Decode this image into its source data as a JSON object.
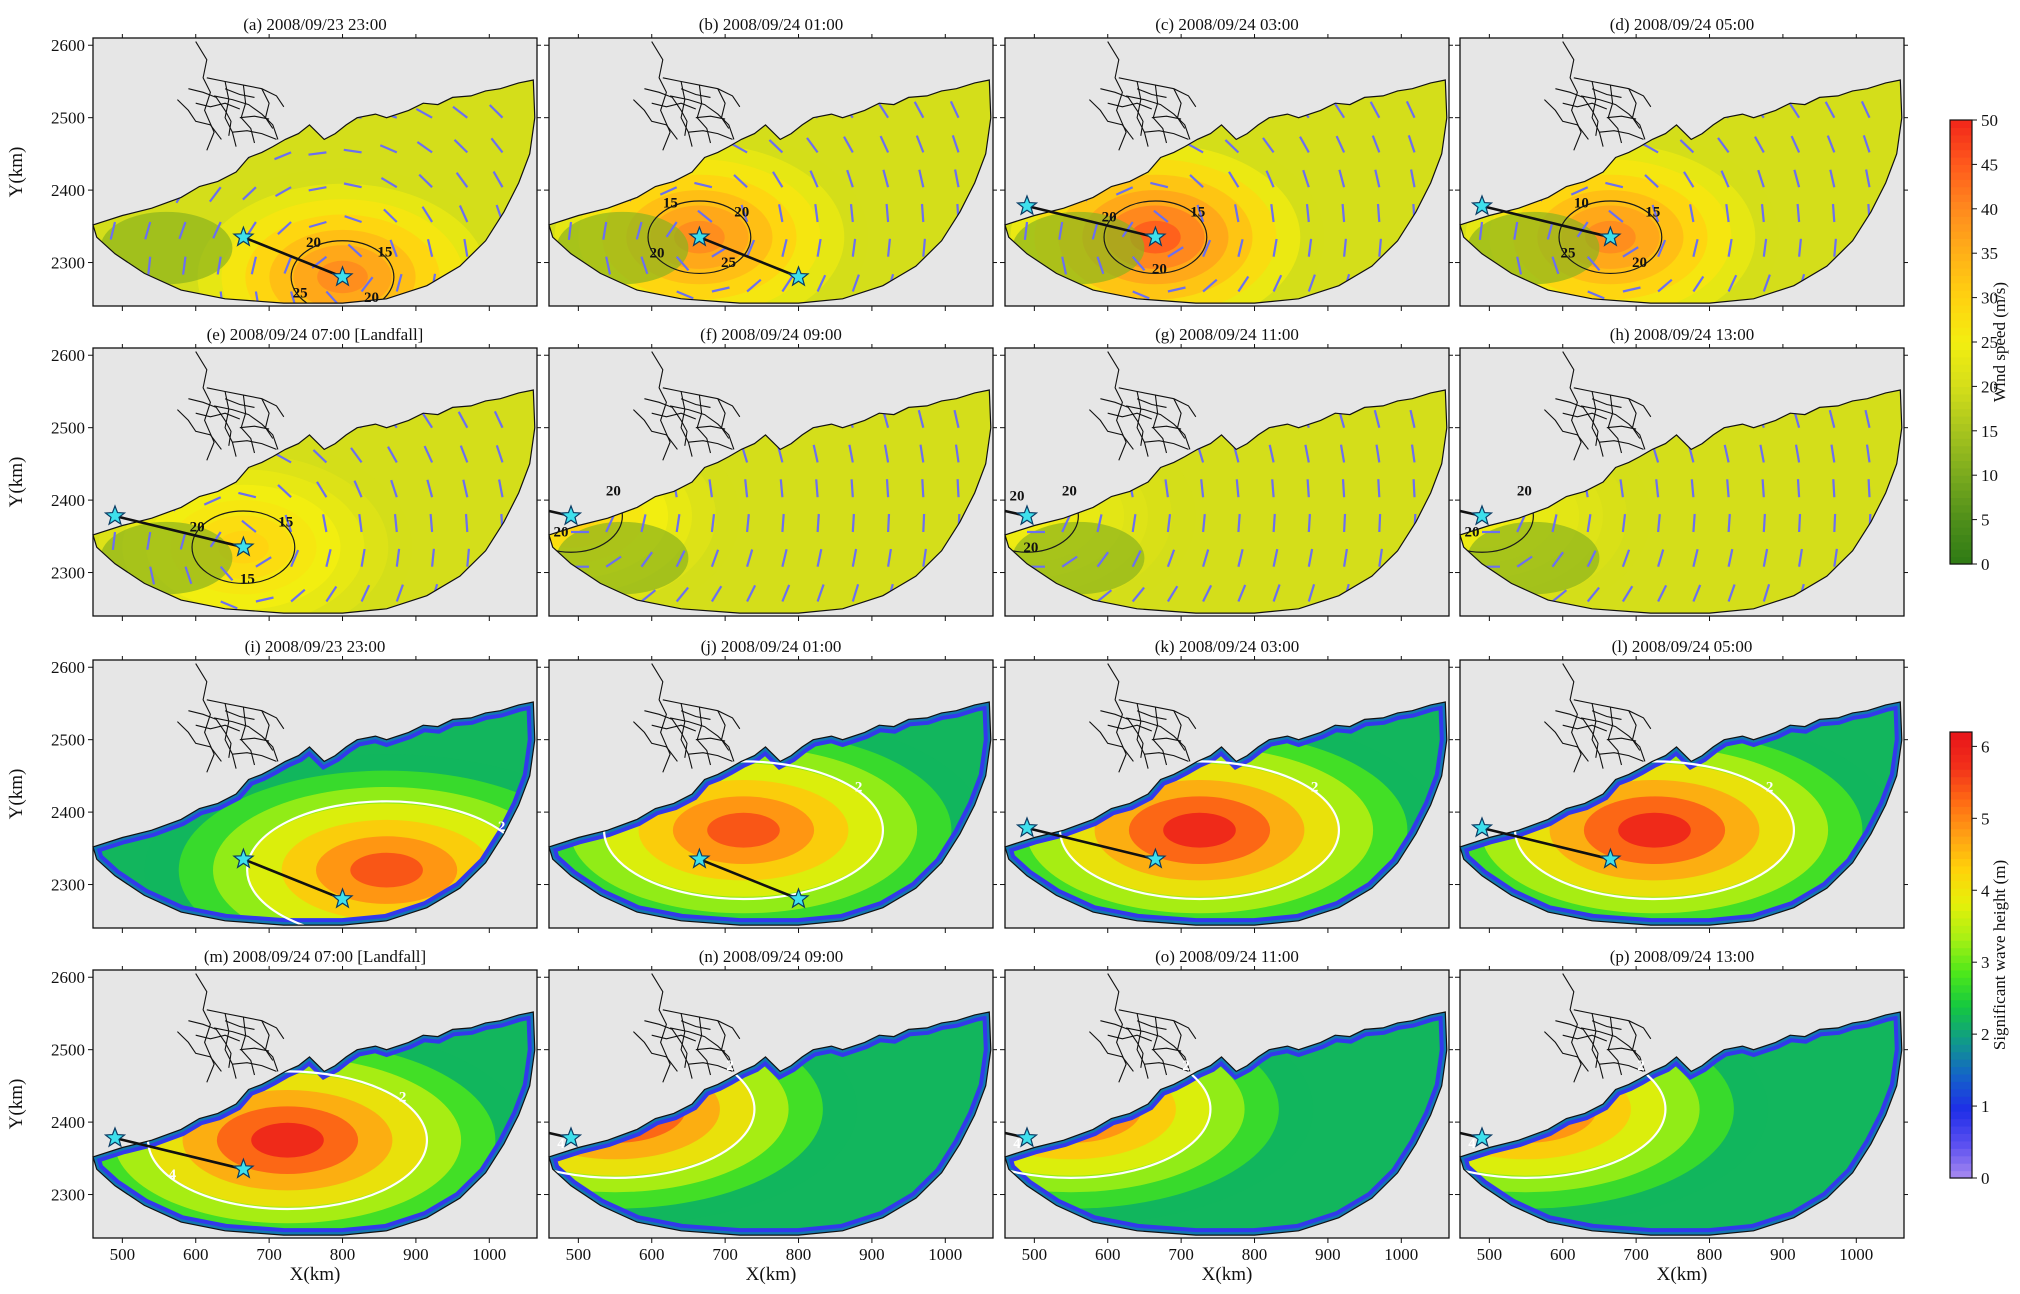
{
  "figure": {
    "x_axis_label": "X(km)",
    "y_axis_label": "Y(km)",
    "x_ticks": [
      500,
      600,
      700,
      800,
      900,
      1000
    ],
    "y_ticks": [
      2300,
      2400,
      2500,
      2600
    ],
    "x_range": [
      460,
      1065
    ],
    "y_range": [
      2240,
      2610
    ]
  },
  "chart_data": [
    {
      "type": "heatmap",
      "variable": "Wind speed",
      "colorbar": {
        "label": "Wind speed (m/s)",
        "range": [
          0,
          50
        ],
        "ticks": [
          0,
          5,
          10,
          15,
          20,
          25,
          30,
          35,
          40,
          45,
          50
        ],
        "colors": [
          "#2e7a14",
          "#4f8f1a",
          "#7aaa1e",
          "#a7c41e",
          "#d4de1a",
          "#f3ee10",
          "#ffd210",
          "#ffb018",
          "#ff8a1e",
          "#ff5a1c",
          "#f2261a"
        ]
      },
      "panels": [
        {
          "label": "(a) 2008/09/23 23:00",
          "storm_center": [
            800,
            2280
          ],
          "track": [
            [
              665,
              2335
            ],
            [
              800,
              2280
            ]
          ],
          "peak_speed": 40,
          "contour_labels": [
            "15",
            "20",
            "25",
            "20"
          ]
        },
        {
          "label": "(b) 2008/09/24 01:00",
          "storm_center": [
            665,
            2335
          ],
          "track": [
            [
              665,
              2335
            ],
            [
              800,
              2280
            ]
          ],
          "peak_speed": 40,
          "contour_labels": [
            "20",
            "15",
            "20",
            "25"
          ]
        },
        {
          "label": "(c) 2008/09/24 03:00",
          "storm_center": [
            665,
            2335
          ],
          "track": [
            [
              490,
              2378
            ],
            [
              665,
              2335
            ]
          ],
          "peak_speed": 45,
          "contour_labels": [
            "15",
            "20",
            "20"
          ]
        },
        {
          "label": "(d) 2008/09/24 05:00",
          "storm_center": [
            665,
            2335
          ],
          "track": [
            [
              490,
              2378
            ],
            [
              665,
              2335
            ]
          ],
          "peak_speed": 40,
          "contour_labels": [
            "15",
            "10",
            "25",
            "20"
          ]
        },
        {
          "label": "(e) 2008/09/24 07:00 [Landfall]",
          "storm_center": [
            665,
            2335
          ],
          "track": [
            [
              490,
              2378
            ],
            [
              665,
              2335
            ]
          ],
          "peak_speed": 30,
          "contour_labels": [
            "15",
            "20",
            "15"
          ]
        },
        {
          "label": "(f) 2008/09/24 09:00",
          "storm_center": [
            490,
            2378
          ],
          "track": [
            [
              460,
              2385
            ],
            [
              490,
              2378
            ]
          ],
          "peak_speed": 30,
          "contour_labels": [
            "20",
            "20"
          ]
        },
        {
          "label": "(g) 2008/09/24 11:00",
          "storm_center": [
            490,
            2378
          ],
          "track": [
            [
              460,
              2385
            ],
            [
              490,
              2378
            ]
          ],
          "peak_speed": 25,
          "contour_labels": [
            "20",
            "20",
            "20"
          ]
        },
        {
          "label": "(h) 2008/09/24 13:00",
          "storm_center": [
            490,
            2378
          ],
          "track": [
            [
              460,
              2385
            ],
            [
              490,
              2378
            ]
          ],
          "peak_speed": 25,
          "contour_labels": [
            "20",
            "20"
          ]
        }
      ]
    },
    {
      "type": "heatmap",
      "variable": "Significant wave height",
      "colorbar": {
        "label": "Significant wave height (m)",
        "range": [
          0,
          6.2
        ],
        "ticks": [
          0,
          1,
          2,
          3,
          4,
          5,
          6
        ],
        "colors": [
          "#a98af0",
          "#5a4ff0",
          "#1f2ee8",
          "#1464c8",
          "#109a8a",
          "#14c840",
          "#4ee81a",
          "#a8f014",
          "#e6f00a",
          "#ffd20a",
          "#ffa014",
          "#ff6a14",
          "#f2301a",
          "#e8141a"
        ]
      },
      "panels": [
        {
          "label": "(i) 2008/09/23 23:00",
          "storm_center": [
            800,
            2280
          ],
          "track": [
            [
              665,
              2335
            ],
            [
              800,
              2280
            ]
          ],
          "peak_height": 5.5,
          "contour_labels": [
            "2"
          ]
        },
        {
          "label": "(j) 2008/09/24 01:00",
          "storm_center": [
            665,
            2335
          ],
          "track": [
            [
              665,
              2335
            ],
            [
              800,
              2280
            ]
          ],
          "peak_height": 5.5,
          "contour_labels": [
            "2"
          ]
        },
        {
          "label": "(k) 2008/09/24 03:00",
          "storm_center": [
            665,
            2335
          ],
          "track": [
            [
              490,
              2378
            ],
            [
              665,
              2335
            ]
          ],
          "peak_height": 6,
          "contour_labels": [
            "2"
          ]
        },
        {
          "label": "(l) 2008/09/24 05:00",
          "storm_center": [
            665,
            2335
          ],
          "track": [
            [
              490,
              2378
            ],
            [
              665,
              2335
            ]
          ],
          "peak_height": 6,
          "contour_labels": [
            "2"
          ]
        },
        {
          "label": "(m) 2008/09/24 07:00 [Landfall]",
          "storm_center": [
            665,
            2335
          ],
          "track": [
            [
              490,
              2378
            ],
            [
              665,
              2335
            ]
          ],
          "peak_height": 6,
          "contour_labels": [
            "2",
            "4"
          ]
        },
        {
          "label": "(n) 2008/09/24 09:00",
          "storm_center": [
            490,
            2378
          ],
          "track": [
            [
              460,
              2385
            ],
            [
              490,
              2378
            ]
          ],
          "peak_height": 6,
          "contour_labels": [
            "2",
            "4"
          ]
        },
        {
          "label": "(o) 2008/09/24 11:00",
          "storm_center": [
            490,
            2378
          ],
          "track": [
            [
              460,
              2385
            ],
            [
              490,
              2378
            ]
          ],
          "peak_height": 5.5,
          "contour_labels": [
            "2",
            "4"
          ]
        },
        {
          "label": "(p) 2008/09/24 13:00",
          "storm_center": [
            490,
            2378
          ],
          "track": [
            [
              460,
              2385
            ],
            [
              490,
              2378
            ]
          ],
          "peak_height": 5.5,
          "contour_labels": [
            "2",
            "4"
          ]
        }
      ]
    }
  ]
}
